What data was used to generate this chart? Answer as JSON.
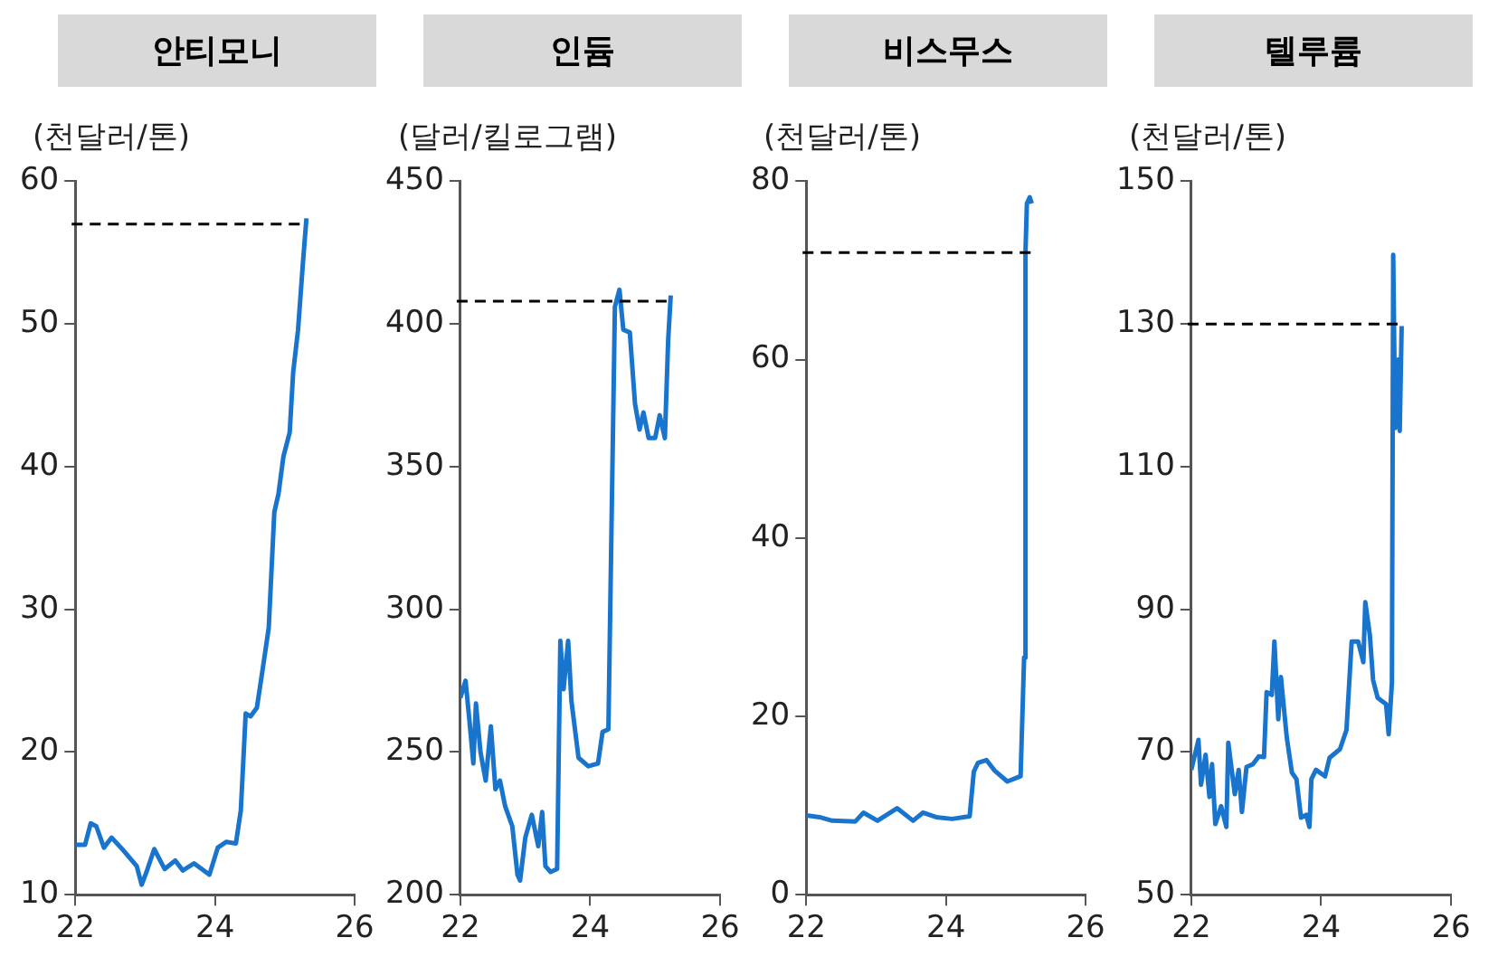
{
  "chart_data": [
    {
      "type": "line",
      "title": "안티모니",
      "ylabel": "(천달러/톤)",
      "xlim": [
        22,
        26
      ],
      "xticks": [
        22,
        24,
        26
      ],
      "ylim": [
        10,
        60
      ],
      "yticks": [
        10,
        20,
        30,
        40,
        50,
        60
      ],
      "grid": false,
      "legend": false,
      "marker": "none",
      "line_style": "solid",
      "ref_lines": [
        {
          "axis": "y",
          "value": 57,
          "color": "#000000",
          "line_style": "dashed"
        }
      ],
      "series": [
        {
          "color": "#1874cd",
          "x": [
            22,
            22.14,
            22.22,
            22.3,
            22.41,
            22.52,
            22.69,
            22.88,
            22.95,
            23.02,
            23.13,
            23.28,
            23.43,
            23.54,
            23.7,
            23.92,
            24.04,
            24.16,
            24.3,
            24.37,
            24.44,
            24.51,
            24.6,
            24.68,
            24.77,
            24.85,
            24.91,
            24.98,
            25.07,
            25.12,
            25.19,
            25.26,
            25.31
          ],
          "values": [
            13.5,
            13.5,
            15.0,
            14.8,
            13.3,
            14.0,
            13.1,
            12.0,
            10.7,
            11.6,
            13.2,
            11.8,
            12.4,
            11.7,
            12.2,
            11.4,
            13.3,
            13.7,
            13.6,
            15.9,
            22.7,
            22.5,
            23.1,
            25.7,
            28.7,
            36.8,
            38.1,
            40.7,
            42.4,
            46.6,
            49.6,
            54.3,
            57.4
          ]
        }
      ]
    },
    {
      "type": "line",
      "title": "인듐",
      "ylabel": "(달러/킬로그램)",
      "xlim": [
        22,
        26
      ],
      "xticks": [
        22,
        24,
        26
      ],
      "ylim": [
        200,
        450
      ],
      "yticks": [
        200,
        250,
        300,
        350,
        400,
        450
      ],
      "grid": false,
      "legend": false,
      "marker": "none",
      "line_style": "solid",
      "ref_lines": [
        {
          "axis": "y",
          "value": 408,
          "color": "#000000",
          "line_style": "dashed"
        }
      ],
      "series": [
        {
          "color": "#1874cd",
          "x": [
            22,
            22.08,
            22.14,
            22.2,
            22.24,
            22.31,
            22.39,
            22.47,
            22.54,
            22.61,
            22.69,
            22.8,
            22.88,
            22.92,
            23.0,
            23.1,
            23.2,
            23.26,
            23.31,
            23.39,
            23.49,
            23.54,
            23.59,
            23.66,
            23.71,
            23.82,
            23.97,
            24.12,
            24.19,
            24.28,
            24.38,
            24.45,
            24.51,
            24.61,
            24.69,
            24.76,
            24.82,
            24.9,
            25.0,
            25.07,
            25.15,
            25.2,
            25.24
          ],
          "values": [
            269,
            275,
            261,
            246,
            267,
            250,
            240,
            259,
            237,
            240,
            231,
            224,
            207,
            205,
            220,
            228,
            217,
            229,
            210,
            208,
            209,
            289,
            272,
            289,
            268,
            248,
            245,
            246,
            257,
            258,
            406,
            412,
            398,
            397,
            372,
            363,
            369,
            360,
            360,
            368,
            360,
            394,
            410
          ]
        }
      ]
    },
    {
      "type": "line",
      "title": "비스무스",
      "ylabel": "(천달러/톤)",
      "xlim": [
        22,
        26
      ],
      "xticks": [
        22,
        24,
        26
      ],
      "ylim": [
        0,
        80
      ],
      "yticks": [
        0,
        20,
        40,
        60,
        80
      ],
      "grid": false,
      "legend": false,
      "marker": "none",
      "line_style": "solid",
      "ref_lines": [
        {
          "axis": "y",
          "value": 72,
          "color": "#000000",
          "line_style": "dashed"
        }
      ],
      "series": [
        {
          "color": "#1874cd",
          "x": [
            22,
            22.19,
            22.37,
            22.7,
            22.82,
            23.02,
            23.3,
            23.53,
            23.67,
            23.86,
            24.09,
            24.34,
            24.4,
            24.46,
            24.58,
            24.7,
            24.88,
            25.07,
            25.12,
            25.14,
            25.16,
            25.2,
            25.23
          ],
          "values": [
            8.9,
            8.7,
            8.3,
            8.2,
            9.2,
            8.3,
            9.7,
            8.3,
            9.2,
            8.7,
            8.5,
            8.8,
            13.8,
            14.8,
            15.1,
            13.9,
            12.7,
            13.3,
            26.6,
            72.1,
            77.5,
            78.2,
            77.5
          ]
        }
      ]
    },
    {
      "type": "line",
      "title": "텔루륨",
      "ylabel": "(천달러/톤)",
      "xlim": [
        22,
        26
      ],
      "xticks": [
        22,
        24,
        26
      ],
      "ylim": [
        50,
        150
      ],
      "yticks": [
        50,
        70,
        90,
        110,
        130,
        150
      ],
      "grid": false,
      "legend": false,
      "marker": "none",
      "line_style": "solid",
      "ref_lines": [
        {
          "axis": "y",
          "value": 130,
          "color": "#000000",
          "line_style": "dashed"
        }
      ],
      "series": [
        {
          "color": "#1874cd",
          "x": [
            22,
            22.11,
            22.15,
            22.22,
            22.28,
            22.32,
            22.37,
            22.46,
            22.54,
            22.57,
            22.67,
            22.73,
            22.78,
            22.85,
            22.95,
            23.04,
            23.12,
            23.16,
            23.24,
            23.28,
            23.34,
            23.38,
            23.47,
            23.55,
            23.62,
            23.69,
            23.77,
            23.82,
            23.85,
            23.92,
            24.06,
            24.13,
            24.29,
            24.39,
            24.47,
            24.57,
            24.65,
            24.68,
            24.75,
            24.8,
            24.87,
            25.0,
            25.04,
            25.09,
            25.11,
            25.14,
            25.19,
            25.21,
            25.24
          ],
          "values": [
            67.5,
            71.7,
            65.4,
            69.6,
            63.7,
            68.3,
            59.9,
            62.4,
            59.5,
            71.3,
            64.1,
            67.5,
            61.6,
            67.9,
            68.3,
            69.4,
            69.3,
            78.4,
            78,
            85.5,
            74.6,
            80.5,
            72.1,
            67.1,
            66.2,
            60.8,
            61.2,
            59.5,
            66.2,
            67.5,
            66.6,
            69.2,
            70.4,
            73.1,
            85.5,
            85.5,
            82.6,
            91,
            86.4,
            80.1,
            77.6,
            76.7,
            72.5,
            79.7,
            139.7,
            115.4,
            125,
            115,
            129.7
          ]
        }
      ]
    }
  ]
}
